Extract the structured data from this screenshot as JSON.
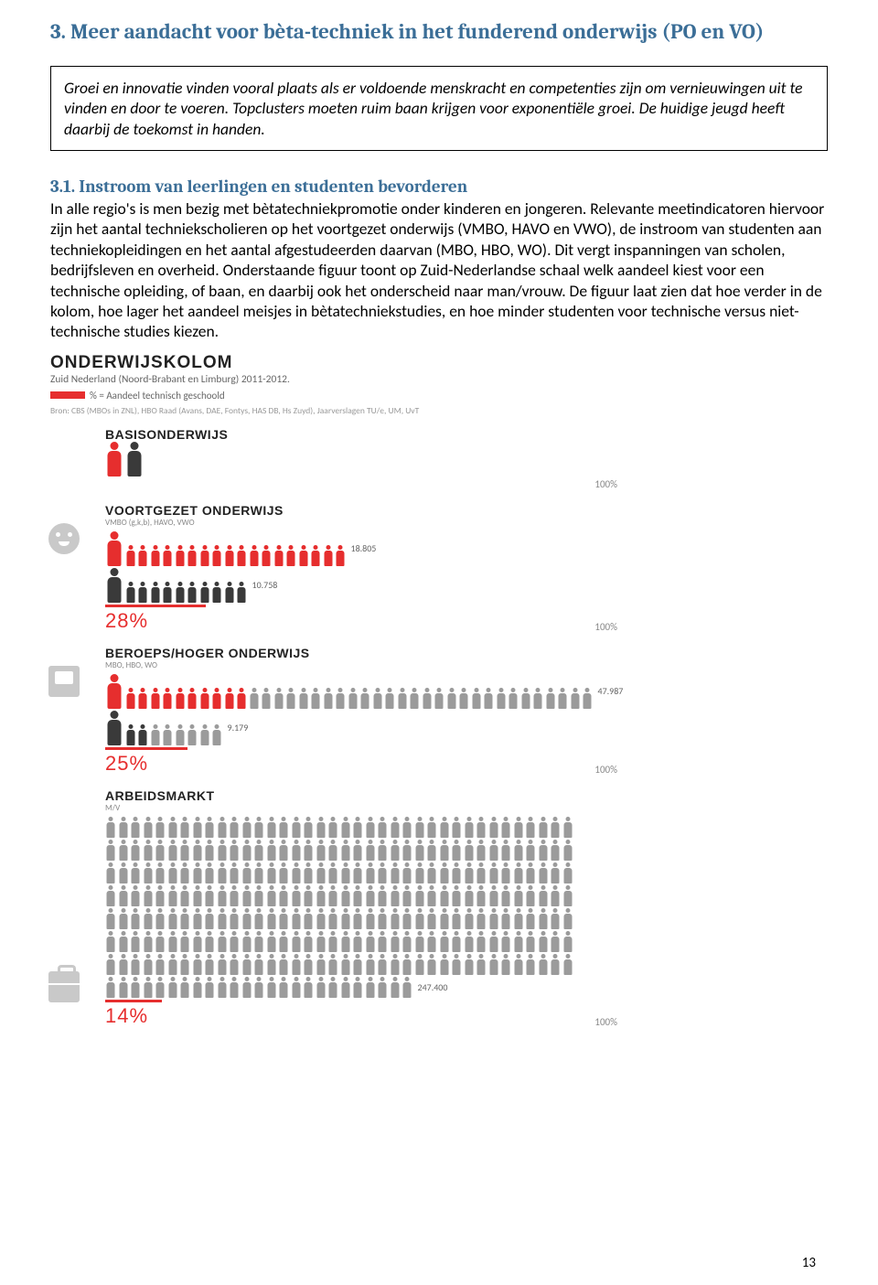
{
  "heading": "3.  Meer aandacht voor bèta-techniek in het funderend onderwijs (PO en VO)",
  "box_text": "Groei en innovatie vinden vooral plaats als er voldoende menskracht en competenties zijn om vernieuwingen uit te vinden en door te voeren. Topclusters moeten ruim baan krijgen voor exponentiële groei. De huidige jeugd heeft daarbij de toekomst in handen.",
  "subheading": "3.1.     Instroom van leerlingen en studenten bevorderen",
  "paragraph": "In alle regio's is men bezig met bètatechniekpromotie onder kinderen en jongeren. Relevante meetindicatoren hiervoor zijn het aantal techniekscholieren op het voortgezet onderwijs (VMBO, HAVO en VWO), de instroom van studenten aan techniekopleidingen en het aantal afgestudeerden daarvan (MBO, HBO, WO).  Dit vergt inspanningen van scholen, bedrijfsleven en overheid. Onderstaande figuur toont op Zuid-Nederlandse schaal welk aandeel kiest voor een technische opleiding, of baan, en daarbij ook het onderscheid naar man/vrouw. De figuur laat zien dat hoe verder in de kolom, hoe lager het aandeel meisjes in bètatechniekstudies, en hoe minder studenten voor technische versus niet-technische studies kiezen.",
  "info": {
    "title": "ONDERWIJSKOLOM",
    "subtitle": "Zuid Nederland (Noord-Brabant en Limburg) 2011-2012.",
    "legend": "% = Aandeel technisch geschoold",
    "legend_color": "#e62e2e",
    "source": "Bron: CBS (MBOs in ZNL), HBO Raad (Avans, DAE, Fontys, HAS DB, Hs Zuyd), Jaarverslagen TU/e, UM, UvT",
    "colors": {
      "red": "#e62e2e",
      "dark": "#3a3a3a",
      "grey": "#9b9b9b",
      "text_light": "#888888"
    },
    "sections": {
      "basis": {
        "title": "BASISONDERWIJS",
        "pct100": "100%"
      },
      "voortgezet": {
        "title": "VOORTGEZET ONDERWIJS",
        "sub": "VMBO (g,k,b), HAVO, VWO",
        "count_top": "18.805",
        "count_bottom": "10.758",
        "pct": "28%",
        "pct100": "100%"
      },
      "beroeps": {
        "title": "BEROEPS/HOGER ONDERWIJS",
        "sub": "MBO, HBO, WO",
        "count_top": "47.987",
        "count_bottom": "9.179",
        "pct": "25%",
        "pct100": "100%"
      },
      "arbeid": {
        "title": "ARBEIDSMARKT",
        "sub": "M/V",
        "count": "247.400",
        "pct": "14%",
        "pct100": "100%"
      }
    }
  },
  "page_number": "13"
}
